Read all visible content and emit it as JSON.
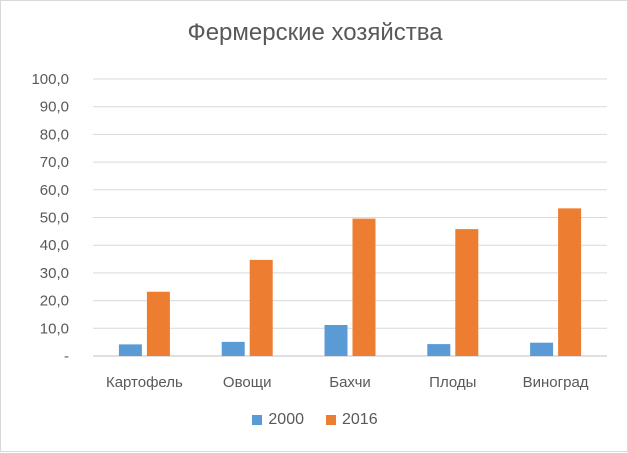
{
  "chart_data": {
    "type": "bar",
    "title": "Фермерские хозяйства",
    "categories": [
      "Картофель",
      "Овощи",
      "Бахчи",
      "Плоды",
      "Виноград"
    ],
    "series": [
      {
        "name": "2000",
        "color": "#5b9bd5",
        "values": [
          4.2,
          5.1,
          11.2,
          4.3,
          4.8
        ]
      },
      {
        "name": "2016",
        "color": "#ed7d31",
        "values": [
          23.2,
          34.7,
          49.6,
          45.8,
          53.3
        ]
      }
    ],
    "xlabel": "",
    "ylabel": "",
    "ylim": [
      0,
      100
    ],
    "yticks": [
      0,
      10,
      20,
      30,
      40,
      50,
      60,
      70,
      80,
      90,
      100
    ],
    "ytick_labels": [
      "-",
      "10,0",
      "20,0",
      "30,0",
      "40,0",
      "50,0",
      "60,0",
      "70,0",
      "80,0",
      "90,0",
      "100,0"
    ],
    "grid": true,
    "legend_position": "bottom"
  }
}
